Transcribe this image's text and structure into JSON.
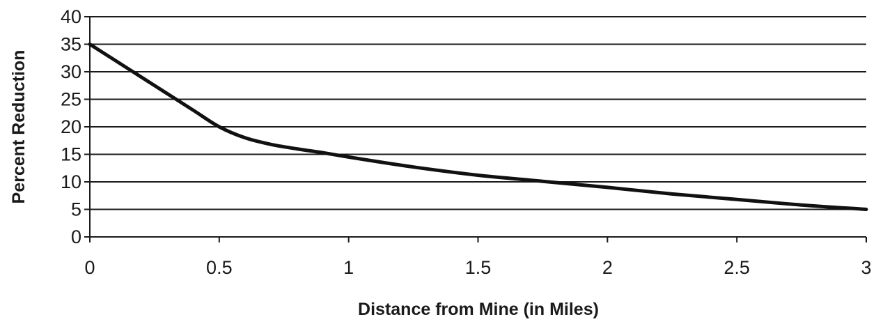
{
  "chart_data": {
    "type": "line",
    "xlabel": "Distance from Mine (in Miles)",
    "ylabel": "Percent Reduction",
    "xlim": [
      0,
      3
    ],
    "ylim": [
      0,
      40
    ],
    "x_ticks": [
      0,
      0.5,
      1,
      1.5,
      2,
      2.5,
      3
    ],
    "y_ticks": [
      0,
      5,
      10,
      15,
      20,
      25,
      30,
      35,
      40
    ],
    "grid": "horizontal",
    "legend": "none",
    "colors": {
      "line": "#111111",
      "grid": "#1a1a1a",
      "text": "#1a1a1a"
    },
    "series": [
      {
        "x": [
          0,
          0.1,
          0.2,
          0.3,
          0.4,
          0.5,
          0.6,
          0.7,
          0.8,
          0.9,
          1.0,
          1.25,
          1.5,
          1.75,
          2.0,
          2.25,
          2.5,
          2.75,
          3.0
        ],
        "y": [
          35,
          32,
          29,
          26,
          23,
          20,
          18,
          16.8,
          16,
          15.3,
          14.5,
          12.7,
          11.2,
          10.1,
          9,
          7.8,
          6.8,
          5.8,
          5
        ]
      }
    ]
  }
}
